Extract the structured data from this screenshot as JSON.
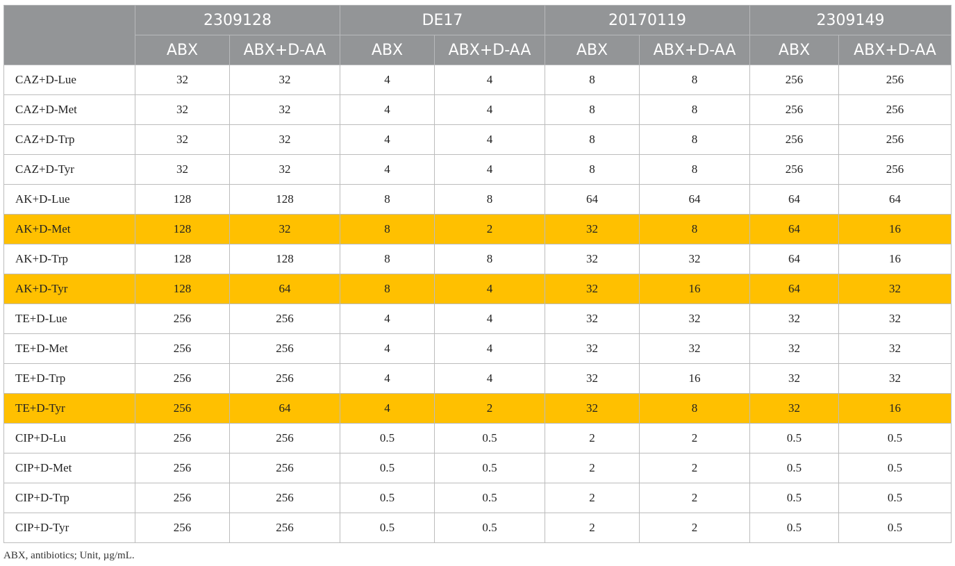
{
  "colors": {
    "header_bg": "#939597",
    "header_text": "#ffffff",
    "highlight": "#ffc000",
    "border": "#bcbcbc"
  },
  "strains": [
    "2309128",
    "DE17",
    "20170119",
    "2309149"
  ],
  "subheaders": [
    "ABX",
    "ABX+D-AA"
  ],
  "rows": [
    {
      "label": "CAZ+D-Lue",
      "highlight": false,
      "values": [
        "32",
        "32",
        "4",
        "4",
        "8",
        "8",
        "256",
        "256"
      ]
    },
    {
      "label": "CAZ+D-Met",
      "highlight": false,
      "values": [
        "32",
        "32",
        "4",
        "4",
        "8",
        "8",
        "256",
        "256"
      ]
    },
    {
      "label": "CAZ+D-Trp",
      "highlight": false,
      "values": [
        "32",
        "32",
        "4",
        "4",
        "8",
        "8",
        "256",
        "256"
      ]
    },
    {
      "label": "CAZ+D-Tyr",
      "highlight": false,
      "values": [
        "32",
        "32",
        "4",
        "4",
        "8",
        "8",
        "256",
        "256"
      ]
    },
    {
      "label": "AK+D-Lue",
      "highlight": false,
      "values": [
        "128",
        "128",
        "8",
        "8",
        "64",
        "64",
        "64",
        "64"
      ]
    },
    {
      "label": "AK+D-Met",
      "highlight": true,
      "values": [
        "128",
        "32",
        "8",
        "2",
        "32",
        "8",
        "64",
        "16"
      ]
    },
    {
      "label": "AK+D-Trp",
      "highlight": false,
      "values": [
        "128",
        "128",
        "8",
        "8",
        "32",
        "32",
        "64",
        "16"
      ]
    },
    {
      "label": "AK+D-Tyr",
      "highlight": true,
      "values": [
        "128",
        "64",
        "8",
        "4",
        "32",
        "16",
        "64",
        "32"
      ]
    },
    {
      "label": "TE+D-Lue",
      "highlight": false,
      "values": [
        "256",
        "256",
        "4",
        "4",
        "32",
        "32",
        "32",
        "32"
      ]
    },
    {
      "label": "TE+D-Met",
      "highlight": false,
      "values": [
        "256",
        "256",
        "4",
        "4",
        "32",
        "32",
        "32",
        "32"
      ]
    },
    {
      "label": "TE+D-Trp",
      "highlight": false,
      "values": [
        "256",
        "256",
        "4",
        "4",
        "32",
        "16",
        "32",
        "32"
      ]
    },
    {
      "label": "TE+D-Tyr",
      "highlight": true,
      "values": [
        "256",
        "64",
        "4",
        "2",
        "32",
        "8",
        "32",
        "16"
      ]
    },
    {
      "label": "CIP+D-Lu",
      "highlight": false,
      "values": [
        "256",
        "256",
        "0.5",
        "0.5",
        "2",
        "2",
        "0.5",
        "0.5"
      ]
    },
    {
      "label": "CIP+D-Met",
      "highlight": false,
      "values": [
        "256",
        "256",
        "0.5",
        "0.5",
        "2",
        "2",
        "0.5",
        "0.5"
      ]
    },
    {
      "label": "CIP+D-Trp",
      "highlight": false,
      "values": [
        "256",
        "256",
        "0.5",
        "0.5",
        "2",
        "2",
        "0.5",
        "0.5"
      ]
    },
    {
      "label": "CIP+D-Tyr",
      "highlight": false,
      "values": [
        "256",
        "256",
        "0.5",
        "0.5",
        "2",
        "2",
        "0.5",
        "0.5"
      ]
    }
  ],
  "footnote": "ABX, antibiotics; Unit, µg/mL."
}
